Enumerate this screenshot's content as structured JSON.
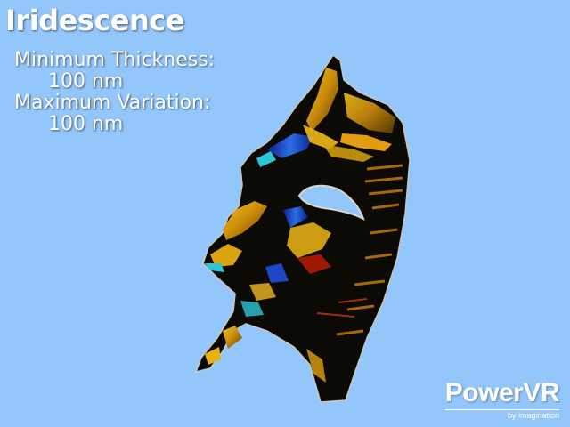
{
  "demo": {
    "title": "Iridescence",
    "params": [
      {
        "label": "Minimum Thickness:",
        "value": "100 nm"
      },
      {
        "label": "Maximum Variation:",
        "value": "100 nm"
      }
    ]
  },
  "logo": {
    "brand": "PowerVR",
    "subtitle": "by imagination"
  },
  "colors": {
    "background": "#93c6fb",
    "mask_base": "#0a0a06",
    "iridescent_gold": "#e8b010",
    "iridescent_blue": "#1438c8",
    "iridescent_cyan": "#2cc6d8",
    "iridescent_red": "#b81c08"
  }
}
